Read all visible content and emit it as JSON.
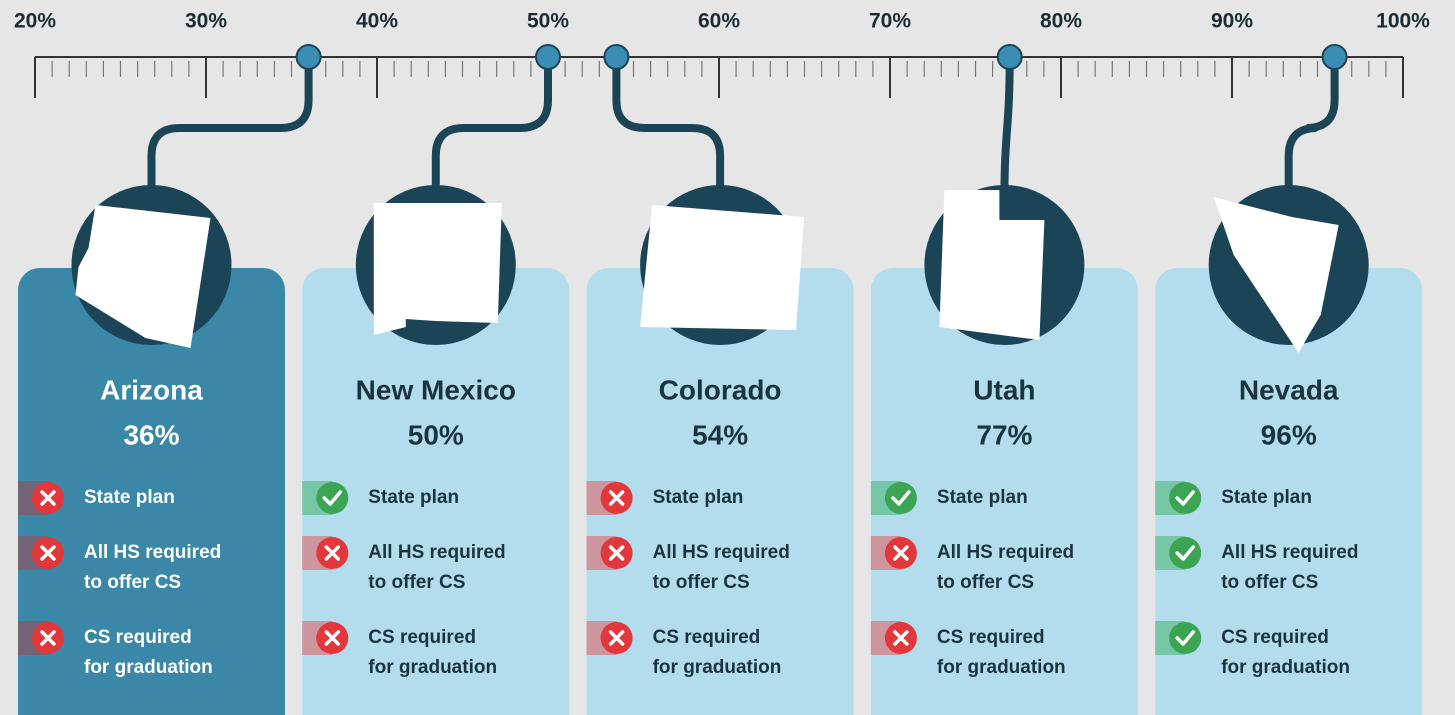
{
  "chart_data": {
    "type": "scale",
    "xlim": [
      20,
      100
    ],
    "xticks": [
      {
        "value": 20,
        "label": "20%"
      },
      {
        "value": 30,
        "label": "30%"
      },
      {
        "value": 40,
        "label": "40%"
      },
      {
        "value": 50,
        "label": "50%"
      },
      {
        "value": 60,
        "label": "60%"
      },
      {
        "value": 70,
        "label": "70%"
      },
      {
        "value": 80,
        "label": "80%"
      },
      {
        "value": 90,
        "label": "90%"
      },
      {
        "value": 100,
        "label": "100%"
      }
    ],
    "categories": [
      "Arizona",
      "New Mexico",
      "Colorado",
      "Utah",
      "Nevada"
    ],
    "values": [
      36,
      50,
      54,
      77,
      96
    ],
    "value_labels": [
      "36%",
      "50%",
      "54%",
      "77%",
      "96%"
    ],
    "highlight": "Arizona",
    "criteria": [
      [
        "State plan"
      ],
      [
        "All HS required",
        "to offer CS"
      ],
      [
        "CS required",
        "for graduation"
      ]
    ],
    "status": [
      [
        false,
        false,
        false
      ],
      [
        true,
        false,
        false
      ],
      [
        false,
        false,
        false
      ],
      [
        true,
        false,
        false
      ],
      [
        true,
        true,
        true
      ]
    ],
    "colors": {
      "marker": "#3b8db4",
      "connector": "#1b4557",
      "highlight_card": "#3a87a8",
      "card": "#b3dcec",
      "yes": "#3ba553",
      "no": "#e2373b"
    }
  }
}
